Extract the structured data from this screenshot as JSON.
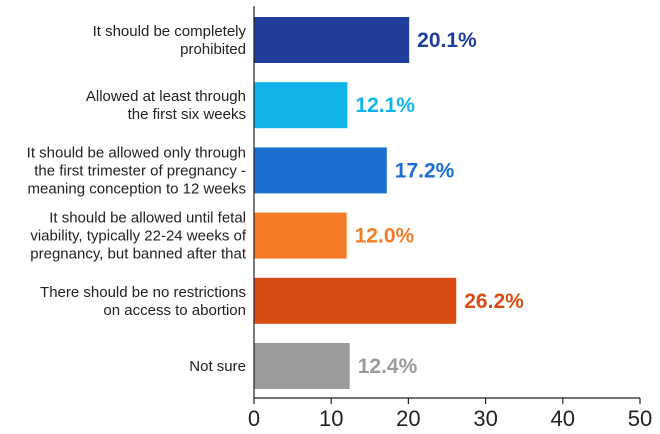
{
  "chart_data": {
    "type": "bar",
    "orientation": "horizontal",
    "title": "",
    "xlabel": "",
    "ylabel": "",
    "xlim": [
      0,
      50
    ],
    "ticks": [
      0,
      10,
      20,
      30,
      40,
      50
    ],
    "grid": false,
    "legend": "none",
    "categories": [
      [
        "It should be completely",
        "prohibited"
      ],
      [
        "Allowed at least through",
        "the first six weeks"
      ],
      [
        "It should be allowed only through",
        "the first trimester of pregnancy -",
        "meaning conception to 12 weeks"
      ],
      [
        "It should be allowed until fetal",
        "viability, typically 22-24 weeks of",
        "pregnancy, but banned after that"
      ],
      [
        "There should be no restrictions",
        "on access to abortion"
      ],
      [
        "Not sure"
      ]
    ],
    "values": [
      20.1,
      12.1,
      17.2,
      12.0,
      26.2,
      12.4
    ],
    "value_labels": [
      "20.1%",
      "12.1%",
      "17.2%",
      "12.0%",
      "26.2%",
      "12.4%"
    ],
    "colors": [
      "#1f3e9c",
      "#11b4ea",
      "#1a6fd0",
      "#f47b25",
      "#d84d14",
      "#9b9b9b"
    ]
  }
}
